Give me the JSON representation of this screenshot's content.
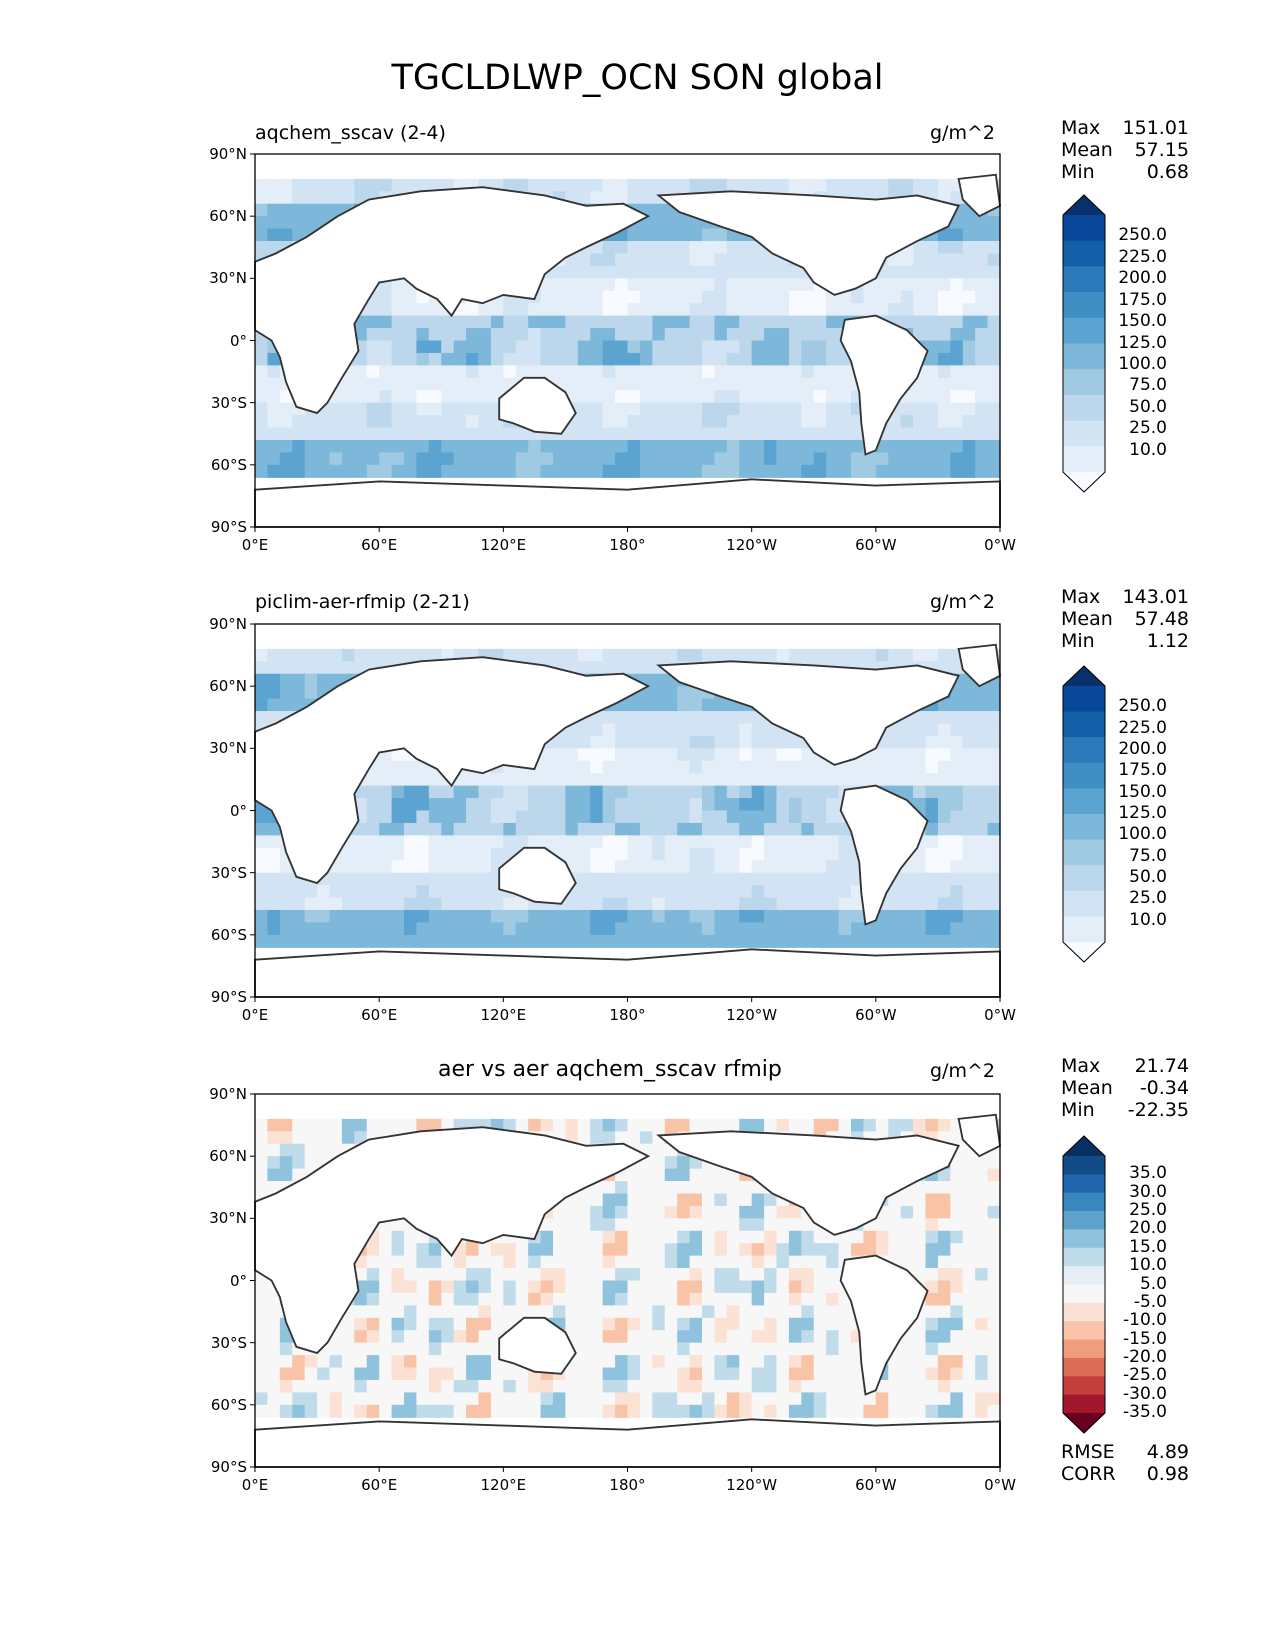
{
  "title": "TGCLDLWP_OCN SON global",
  "axes": {
    "yticks": [
      "90°N",
      "60°N",
      "30°N",
      "0°",
      "30°S",
      "60°S",
      "90°S"
    ],
    "xticks": [
      "0°E",
      "60°E",
      "120°E",
      "180°",
      "120°W",
      "60°W",
      "0°W"
    ]
  },
  "panels": [
    {
      "title": "aqchem_sscav (2-4)",
      "units": "g/m^2",
      "stats": {
        "max_label": "Max",
        "max": "151.01",
        "mean_label": "Mean",
        "mean": "57.15",
        "min_label": "Min",
        "min": "0.68"
      },
      "colorbar": {
        "labels": [
          "250.0",
          "225.0",
          "200.0",
          "175.0",
          "150.0",
          "125.0",
          "100.0",
          "75.0",
          "50.0",
          "25.0",
          "10.0"
        ],
        "colors": [
          "#08306b",
          "#08479a",
          "#1460a8",
          "#2b7bba",
          "#3f8fc5",
          "#5ba3d0",
          "#7db8da",
          "#9fcae1",
          "#bcd7eb",
          "#d2e3f3",
          "#e3eef8",
          "#f7fbff"
        ]
      }
    },
    {
      "title": "piclim-aer-rfmip (2-21)",
      "units": "g/m^2",
      "stats": {
        "max_label": "Max",
        "max": "143.01",
        "mean_label": "Mean",
        "mean": "57.48",
        "min_label": "Min",
        "min": "1.12"
      },
      "colorbar": {
        "labels": [
          "250.0",
          "225.0",
          "200.0",
          "175.0",
          "150.0",
          "125.0",
          "100.0",
          "75.0",
          "50.0",
          "25.0",
          "10.0"
        ],
        "colors": [
          "#08306b",
          "#08479a",
          "#1460a8",
          "#2b7bba",
          "#3f8fc5",
          "#5ba3d0",
          "#7db8da",
          "#9fcae1",
          "#bcd7eb",
          "#d2e3f3",
          "#e3eef8",
          "#f7fbff"
        ]
      }
    },
    {
      "title": "aer vs aer aqchem_sscav rfmip",
      "units": "g/m^2",
      "stats": {
        "max_label": "Max",
        "max": "21.74",
        "mean_label": "Mean",
        "mean": "-0.34",
        "min_label": "Min",
        "min": "-22.35"
      },
      "colorbar": {
        "labels": [
          "35.0",
          "30.0",
          "25.0",
          "20.0",
          "15.0",
          "10.0",
          "5.0",
          "-5.0",
          "-10.0",
          "-15.0",
          "-20.0",
          "-25.0",
          "-30.0",
          "-35.0"
        ],
        "colors": [
          "#053061",
          "#134b87",
          "#2166ac",
          "#3a87bd",
          "#5fa3cc",
          "#8fc2dd",
          "#c0dceb",
          "#e4eef4",
          "#f7f7f7",
          "#fbe2d5",
          "#f8c3a7",
          "#f09d7e",
          "#dc6e57",
          "#c23f3b",
          "#a2172d",
          "#67001f"
        ]
      },
      "footer": {
        "rmse_label": "RMSE",
        "rmse": "4.89",
        "corr_label": "CORR",
        "corr": "0.98"
      }
    }
  ]
}
